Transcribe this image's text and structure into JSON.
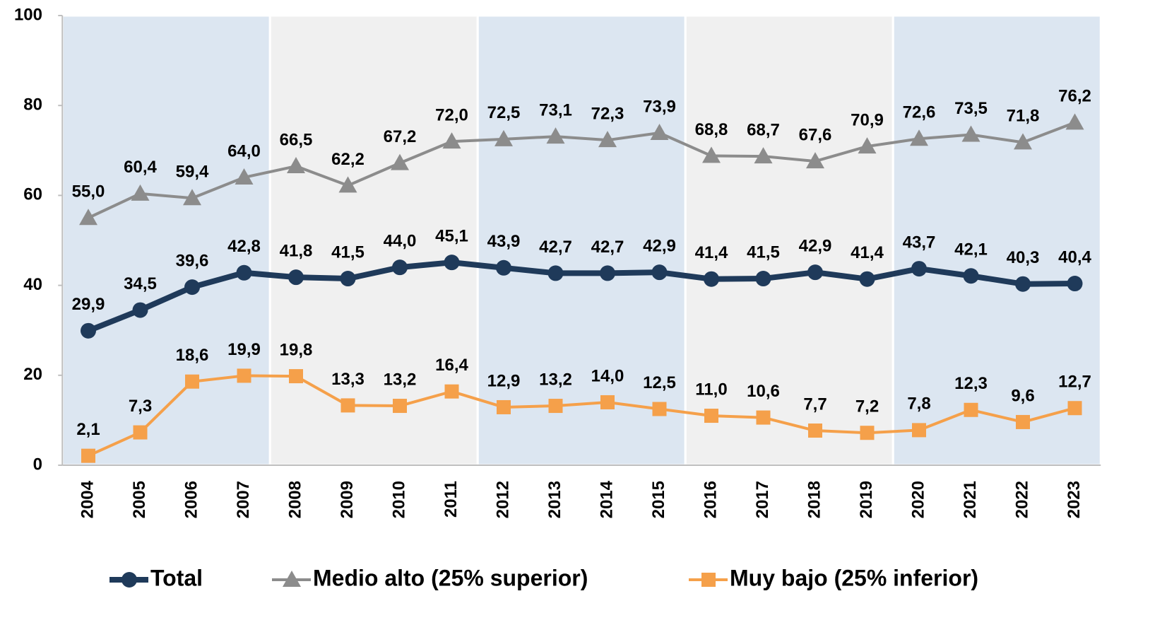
{
  "chart_data": {
    "type": "line",
    "categories": [
      "2004",
      "2005",
      "2006",
      "2007",
      "2008",
      "2009",
      "2010",
      "2011",
      "2012",
      "2013",
      "2014",
      "2015",
      "2016",
      "2017",
      "2018",
      "2019",
      "2020",
      "2021",
      "2022",
      "2023"
    ],
    "series": [
      {
        "name": "Total",
        "color": "#1f3a5a",
        "marker": "circle",
        "values": [
          29.9,
          34.5,
          39.6,
          42.8,
          41.8,
          41.5,
          44.0,
          45.1,
          43.9,
          42.7,
          42.7,
          42.9,
          41.4,
          41.5,
          42.9,
          41.4,
          43.7,
          42.1,
          40.3,
          40.4
        ],
        "value_labels": [
          "29,9",
          "34,5",
          "39,6",
          "42,8",
          "41,8",
          "41,5",
          "44,0",
          "45,1",
          "43,9",
          "42,7",
          "42,7",
          "42,9",
          "41,4",
          "41,5",
          "42,9",
          "41,4",
          "43,7",
          "42,1",
          "40,3",
          "40,4"
        ]
      },
      {
        "name": "Medio alto  (25% superior)",
        "color": "#8c8c8c",
        "marker": "triangle",
        "values": [
          55.0,
          60.4,
          59.4,
          64.0,
          66.5,
          62.2,
          67.2,
          72.0,
          72.5,
          73.1,
          72.3,
          73.9,
          68.8,
          68.7,
          67.6,
          70.9,
          72.6,
          73.5,
          71.8,
          76.2
        ],
        "value_labels": [
          "55,0",
          "60,4",
          "59,4",
          "64,0",
          "66,5",
          "62,2",
          "67,2",
          "72,0",
          "72,5",
          "73,1",
          "72,3",
          "73,9",
          "68,8",
          "68,7",
          "67,6",
          "70,9",
          "72,6",
          "73,5",
          "71,8",
          "76,2"
        ]
      },
      {
        "name": "Muy bajo (25% inferior)",
        "color": "#f5a04a",
        "marker": "square",
        "values": [
          2.1,
          7.3,
          18.6,
          19.9,
          19.8,
          13.3,
          13.2,
          16.4,
          12.9,
          13.2,
          14.0,
          12.5,
          11.0,
          10.6,
          7.7,
          7.2,
          7.8,
          12.3,
          9.6,
          12.7
        ],
        "value_labels": [
          "2,1",
          "7,3",
          "18,6",
          "19,9",
          "19,8",
          "13,3",
          "13,2",
          "16,4",
          "12,9",
          "13,2",
          "14,0",
          "12,5",
          "11,0",
          "10,6",
          "7,7",
          "7,2",
          "7,8",
          "12,3",
          "9,6",
          "12,7"
        ]
      }
    ],
    "ylim": [
      0,
      100
    ],
    "yticks": [
      0,
      20,
      40,
      60,
      80,
      100
    ],
    "grid": false,
    "legend": "bottom"
  }
}
